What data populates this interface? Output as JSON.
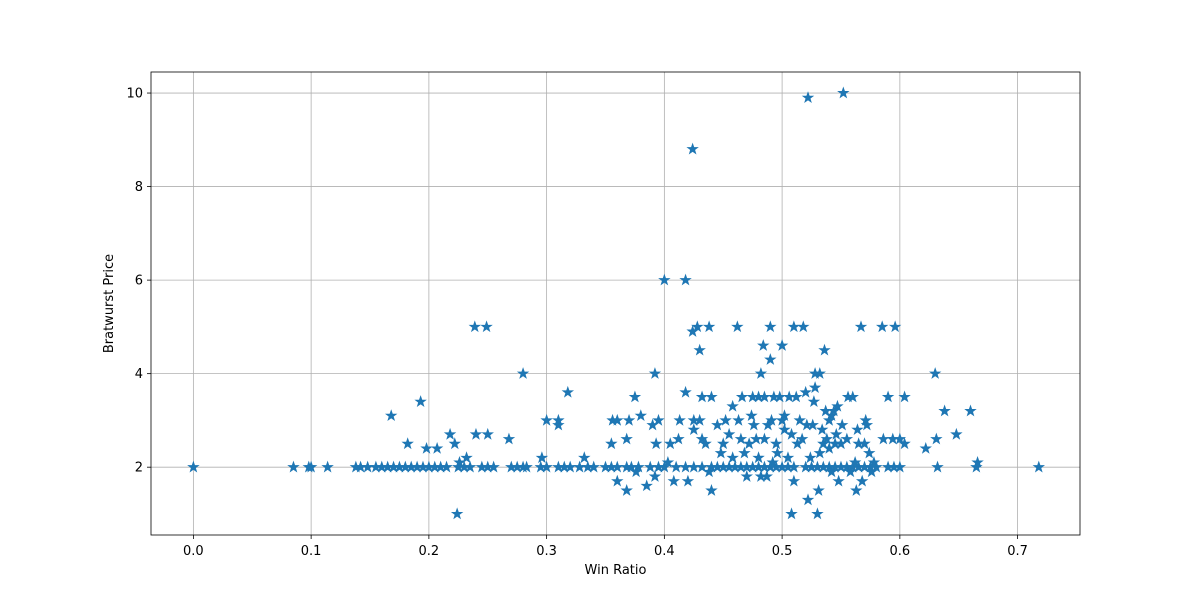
{
  "chart_data": {
    "type": "scatter",
    "title": "",
    "xlabel": "Win Ratio",
    "ylabel": "Bratwurst Price",
    "xlim": [
      -0.036,
      0.753
    ],
    "ylim": [
      0.55,
      10.45
    ],
    "xticks": [
      "0.0",
      "0.1",
      "0.2",
      "0.3",
      "0.4",
      "0.5",
      "0.6",
      "0.7"
    ],
    "yticks": [
      "2",
      "4",
      "6",
      "8",
      "10"
    ],
    "xtick_values": [
      0,
      0.1,
      0.2,
      0.3,
      0.4,
      0.5,
      0.6,
      0.7
    ],
    "ytick_values": [
      2,
      4,
      6,
      8,
      10
    ],
    "grid": true,
    "marker": "star",
    "color": "#1f77b4",
    "series": [
      {
        "points": [
          [
            0.0,
            2.0
          ],
          [
            0.085,
            2.0
          ],
          [
            0.098,
            2.0
          ],
          [
            0.1,
            2.0
          ],
          [
            0.114,
            2.0
          ],
          [
            0.138,
            2.0
          ],
          [
            0.142,
            2.0
          ],
          [
            0.148,
            2.0
          ],
          [
            0.155,
            2.0
          ],
          [
            0.16,
            2.0
          ],
          [
            0.165,
            2.0
          ],
          [
            0.17,
            2.0
          ],
          [
            0.175,
            2.0
          ],
          [
            0.18,
            2.0
          ],
          [
            0.185,
            2.0
          ],
          [
            0.19,
            2.0
          ],
          [
            0.195,
            2.0
          ],
          [
            0.2,
            2.0
          ],
          [
            0.205,
            2.0
          ],
          [
            0.21,
            2.0
          ],
          [
            0.215,
            2.0
          ],
          [
            0.225,
            2.0
          ],
          [
            0.23,
            2.0
          ],
          [
            0.235,
            2.0
          ],
          [
            0.245,
            2.0
          ],
          [
            0.25,
            2.0
          ],
          [
            0.255,
            2.0
          ],
          [
            0.27,
            2.0
          ],
          [
            0.275,
            2.0
          ],
          [
            0.28,
            2.0
          ],
          [
            0.283,
            2.0
          ],
          [
            0.295,
            2.0
          ],
          [
            0.3,
            2.0
          ],
          [
            0.31,
            2.0
          ],
          [
            0.315,
            2.0
          ],
          [
            0.32,
            2.0
          ],
          [
            0.328,
            2.0
          ],
          [
            0.335,
            2.0
          ],
          [
            0.34,
            2.0
          ],
          [
            0.35,
            2.0
          ],
          [
            0.355,
            2.0
          ],
          [
            0.36,
            2.0
          ],
          [
            0.368,
            2.0
          ],
          [
            0.372,
            2.0
          ],
          [
            0.378,
            2.0
          ],
          [
            0.388,
            2.0
          ],
          [
            0.395,
            2.0
          ],
          [
            0.4,
            2.0
          ],
          [
            0.41,
            2.0
          ],
          [
            0.418,
            2.0
          ],
          [
            0.425,
            2.0
          ],
          [
            0.432,
            2.0
          ],
          [
            0.44,
            2.0
          ],
          [
            0.445,
            2.0
          ],
          [
            0.45,
            2.0
          ],
          [
            0.455,
            2.0
          ],
          [
            0.46,
            2.0
          ],
          [
            0.465,
            2.0
          ],
          [
            0.47,
            2.0
          ],
          [
            0.475,
            2.0
          ],
          [
            0.48,
            2.0
          ],
          [
            0.485,
            2.0
          ],
          [
            0.49,
            2.0
          ],
          [
            0.495,
            2.0
          ],
          [
            0.5,
            2.0
          ],
          [
            0.505,
            2.0
          ],
          [
            0.51,
            2.0
          ],
          [
            0.52,
            2.0
          ],
          [
            0.525,
            2.0
          ],
          [
            0.53,
            2.0
          ],
          [
            0.535,
            2.0
          ],
          [
            0.54,
            2.0
          ],
          [
            0.545,
            2.0
          ],
          [
            0.55,
            2.0
          ],
          [
            0.555,
            2.0
          ],
          [
            0.56,
            2.0
          ],
          [
            0.565,
            2.0
          ],
          [
            0.57,
            2.0
          ],
          [
            0.575,
            2.0
          ],
          [
            0.58,
            2.0
          ],
          [
            0.59,
            2.0
          ],
          [
            0.595,
            2.0
          ],
          [
            0.6,
            2.0
          ],
          [
            0.632,
            2.0
          ],
          [
            0.665,
            2.0
          ],
          [
            0.718,
            2.0
          ],
          [
            0.168,
            3.1
          ],
          [
            0.182,
            2.5
          ],
          [
            0.193,
            3.4
          ],
          [
            0.198,
            2.4
          ],
          [
            0.207,
            2.4
          ],
          [
            0.218,
            2.7
          ],
          [
            0.222,
            2.5
          ],
          [
            0.224,
            1.0
          ],
          [
            0.226,
            2.1
          ],
          [
            0.232,
            2.2
          ],
          [
            0.239,
            5.0
          ],
          [
            0.24,
            2.7
          ],
          [
            0.249,
            5.0
          ],
          [
            0.25,
            2.7
          ],
          [
            0.268,
            2.6
          ],
          [
            0.28,
            4.0
          ],
          [
            0.296,
            2.2
          ],
          [
            0.3,
            3.0
          ],
          [
            0.31,
            2.9
          ],
          [
            0.31,
            3.0
          ],
          [
            0.318,
            3.6
          ],
          [
            0.332,
            2.2
          ],
          [
            0.355,
            2.5
          ],
          [
            0.356,
            3.0
          ],
          [
            0.36,
            3.0
          ],
          [
            0.36,
            1.7
          ],
          [
            0.368,
            2.6
          ],
          [
            0.368,
            1.5
          ],
          [
            0.37,
            3.0
          ],
          [
            0.375,
            3.5
          ],
          [
            0.376,
            1.9
          ],
          [
            0.38,
            3.1
          ],
          [
            0.385,
            1.6
          ],
          [
            0.39,
            2.9
          ],
          [
            0.392,
            4.0
          ],
          [
            0.392,
            1.8
          ],
          [
            0.393,
            2.5
          ],
          [
            0.395,
            3.0
          ],
          [
            0.4,
            6.0
          ],
          [
            0.403,
            2.1
          ],
          [
            0.405,
            2.5
          ],
          [
            0.408,
            1.7
          ],
          [
            0.412,
            2.6
          ],
          [
            0.413,
            3.0
          ],
          [
            0.418,
            6.0
          ],
          [
            0.418,
            3.6
          ],
          [
            0.42,
            1.7
          ],
          [
            0.424,
            8.8
          ],
          [
            0.424,
            4.9
          ],
          [
            0.425,
            3.0
          ],
          [
            0.425,
            2.8
          ],
          [
            0.428,
            5.0
          ],
          [
            0.43,
            3.0
          ],
          [
            0.43,
            4.5
          ],
          [
            0.432,
            3.5
          ],
          [
            0.432,
            2.6
          ],
          [
            0.435,
            2.5
          ],
          [
            0.438,
            5.0
          ],
          [
            0.438,
            1.9
          ],
          [
            0.44,
            3.5
          ],
          [
            0.44,
            1.5
          ],
          [
            0.445,
            2.9
          ],
          [
            0.448,
            2.3
          ],
          [
            0.45,
            2.5
          ],
          [
            0.452,
            3.0
          ],
          [
            0.455,
            2.7
          ],
          [
            0.458,
            3.3
          ],
          [
            0.458,
            2.2
          ],
          [
            0.462,
            5.0
          ],
          [
            0.463,
            3.0
          ],
          [
            0.465,
            2.6
          ],
          [
            0.466,
            3.5
          ],
          [
            0.468,
            2.3
          ],
          [
            0.47,
            1.8
          ],
          [
            0.472,
            2.5
          ],
          [
            0.474,
            3.1
          ],
          [
            0.475,
            3.5
          ],
          [
            0.476,
            2.9
          ],
          [
            0.478,
            2.6
          ],
          [
            0.48,
            2.2
          ],
          [
            0.48,
            3.5
          ],
          [
            0.482,
            1.8
          ],
          [
            0.482,
            4.0
          ],
          [
            0.484,
            4.6
          ],
          [
            0.485,
            3.5
          ],
          [
            0.485,
            2.6
          ],
          [
            0.487,
            1.8
          ],
          [
            0.488,
            2.9
          ],
          [
            0.49,
            5.0
          ],
          [
            0.49,
            4.3
          ],
          [
            0.491,
            3.0
          ],
          [
            0.492,
            2.1
          ],
          [
            0.493,
            3.5
          ],
          [
            0.495,
            2.5
          ],
          [
            0.496,
            2.3
          ],
          [
            0.498,
            3.5
          ],
          [
            0.5,
            3.0
          ],
          [
            0.5,
            4.6
          ],
          [
            0.502,
            2.8
          ],
          [
            0.502,
            3.1
          ],
          [
            0.505,
            2.2
          ],
          [
            0.506,
            3.5
          ],
          [
            0.508,
            2.7
          ],
          [
            0.508,
            1.0
          ],
          [
            0.51,
            5.0
          ],
          [
            0.51,
            1.7
          ],
          [
            0.512,
            3.5
          ],
          [
            0.513,
            2.5
          ],
          [
            0.515,
            3.0
          ],
          [
            0.517,
            2.6
          ],
          [
            0.518,
            5.0
          ],
          [
            0.52,
            3.6
          ],
          [
            0.521,
            2.9
          ],
          [
            0.522,
            9.9
          ],
          [
            0.522,
            1.3
          ],
          [
            0.524,
            2.2
          ],
          [
            0.526,
            2.9
          ],
          [
            0.527,
            3.4
          ],
          [
            0.528,
            4.0
          ],
          [
            0.528,
            3.7
          ],
          [
            0.53,
            1.0
          ],
          [
            0.531,
            1.5
          ],
          [
            0.532,
            4.0
          ],
          [
            0.532,
            2.3
          ],
          [
            0.534,
            2.8
          ],
          [
            0.535,
            2.5
          ],
          [
            0.536,
            4.5
          ],
          [
            0.537,
            3.2
          ],
          [
            0.538,
            2.6
          ],
          [
            0.54,
            2.4
          ],
          [
            0.54,
            3.0
          ],
          [
            0.542,
            3.1
          ],
          [
            0.542,
            1.9
          ],
          [
            0.544,
            3.2
          ],
          [
            0.545,
            2.5
          ],
          [
            0.546,
            2.7
          ],
          [
            0.547,
            3.3
          ],
          [
            0.548,
            1.7
          ],
          [
            0.55,
            2.5
          ],
          [
            0.551,
            2.9
          ],
          [
            0.552,
            10.0
          ],
          [
            0.555,
            2.6
          ],
          [
            0.556,
            3.5
          ],
          [
            0.558,
            1.9
          ],
          [
            0.56,
            3.5
          ],
          [
            0.562,
            2.1
          ],
          [
            0.563,
            1.5
          ],
          [
            0.564,
            2.8
          ],
          [
            0.565,
            2.5
          ],
          [
            0.567,
            5.0
          ],
          [
            0.568,
            1.7
          ],
          [
            0.57,
            2.5
          ],
          [
            0.571,
            3.0
          ],
          [
            0.572,
            2.9
          ],
          [
            0.574,
            2.3
          ],
          [
            0.576,
            1.9
          ],
          [
            0.578,
            2.1
          ],
          [
            0.585,
            5.0
          ],
          [
            0.586,
            2.6
          ],
          [
            0.59,
            3.5
          ],
          [
            0.594,
            2.6
          ],
          [
            0.596,
            5.0
          ],
          [
            0.6,
            2.6
          ],
          [
            0.604,
            3.5
          ],
          [
            0.604,
            2.5
          ],
          [
            0.622,
            2.4
          ],
          [
            0.63,
            4.0
          ],
          [
            0.631,
            2.6
          ],
          [
            0.638,
            3.2
          ],
          [
            0.648,
            2.7
          ],
          [
            0.66,
            3.2
          ],
          [
            0.666,
            2.1
          ]
        ]
      }
    ]
  }
}
